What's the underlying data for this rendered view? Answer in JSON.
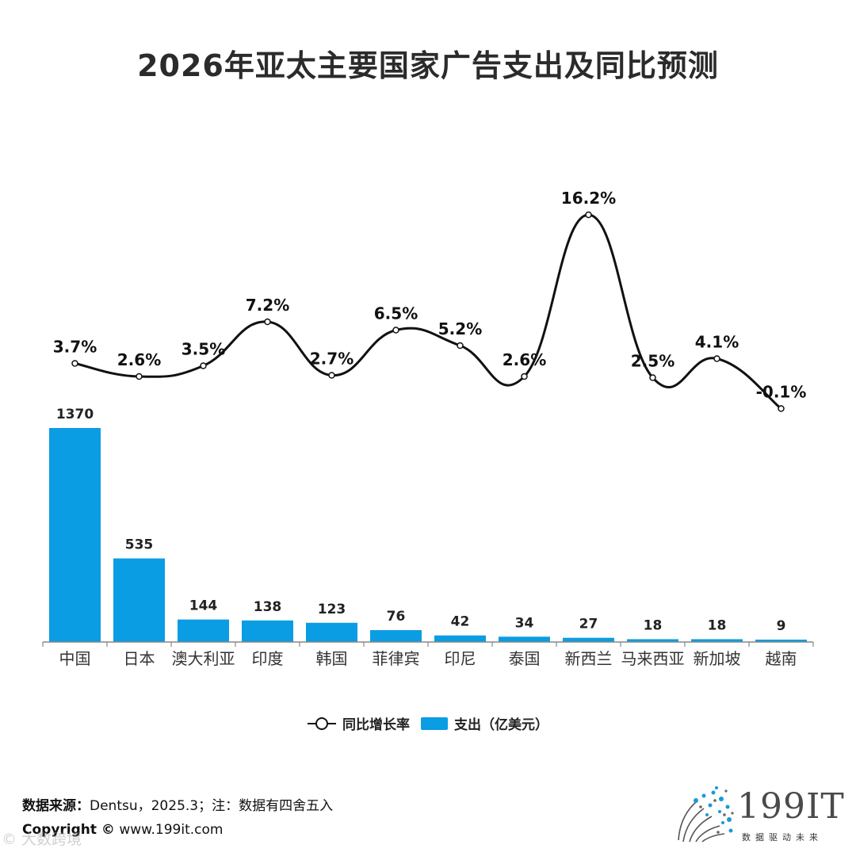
{
  "title": "2026年亚太主要国家广告支出及同比预测",
  "chart_data": {
    "type": "bar",
    "categories": [
      "中国",
      "日本",
      "澳大利亚",
      "印度",
      "韩国",
      "菲律宾",
      "印尼",
      "泰国",
      "新西兰",
      "马来西亚",
      "新加坡",
      "越南"
    ],
    "series": [
      {
        "name": "支出（亿美元）",
        "type": "bar",
        "color": "#0b9de3",
        "values": [
          1370,
          535,
          144,
          138,
          123,
          76,
          42,
          34,
          27,
          18,
          18,
          9
        ],
        "labels": [
          "1370",
          "535",
          "144",
          "138",
          "123",
          "76",
          "42",
          "34",
          "27",
          "18",
          "18",
          "9"
        ]
      },
      {
        "name": "同比增长率",
        "type": "line",
        "color": "#111111",
        "values": [
          3.7,
          2.6,
          3.5,
          7.2,
          2.7,
          6.5,
          5.2,
          2.6,
          16.2,
          2.5,
          4.1,
          -0.1
        ],
        "labels": [
          "3.7%",
          "2.6%",
          "3.5%",
          "7.2%",
          "2.7%",
          "6.5%",
          "5.2%",
          "2.6%",
          "16.2%",
          "2.5%",
          "4.1%",
          "-0.1%"
        ]
      }
    ],
    "legend": [
      "同比增长率",
      "支出（亿美元）"
    ],
    "legend_position": "bottom"
  },
  "legend": {
    "line_label": "同比增长率",
    "bar_label": "支出（亿美元）"
  },
  "footer": {
    "source_key": "数据来源：",
    "source_value": "Dentsu，2025.3；注：数据有四舍五入",
    "copyright_key": "Copyright ©",
    "copyright_value": " www.199it.com",
    "watermark": "© 大数跨境"
  },
  "logo": {
    "name": "199IT",
    "tagline": "数据驱动未来"
  }
}
